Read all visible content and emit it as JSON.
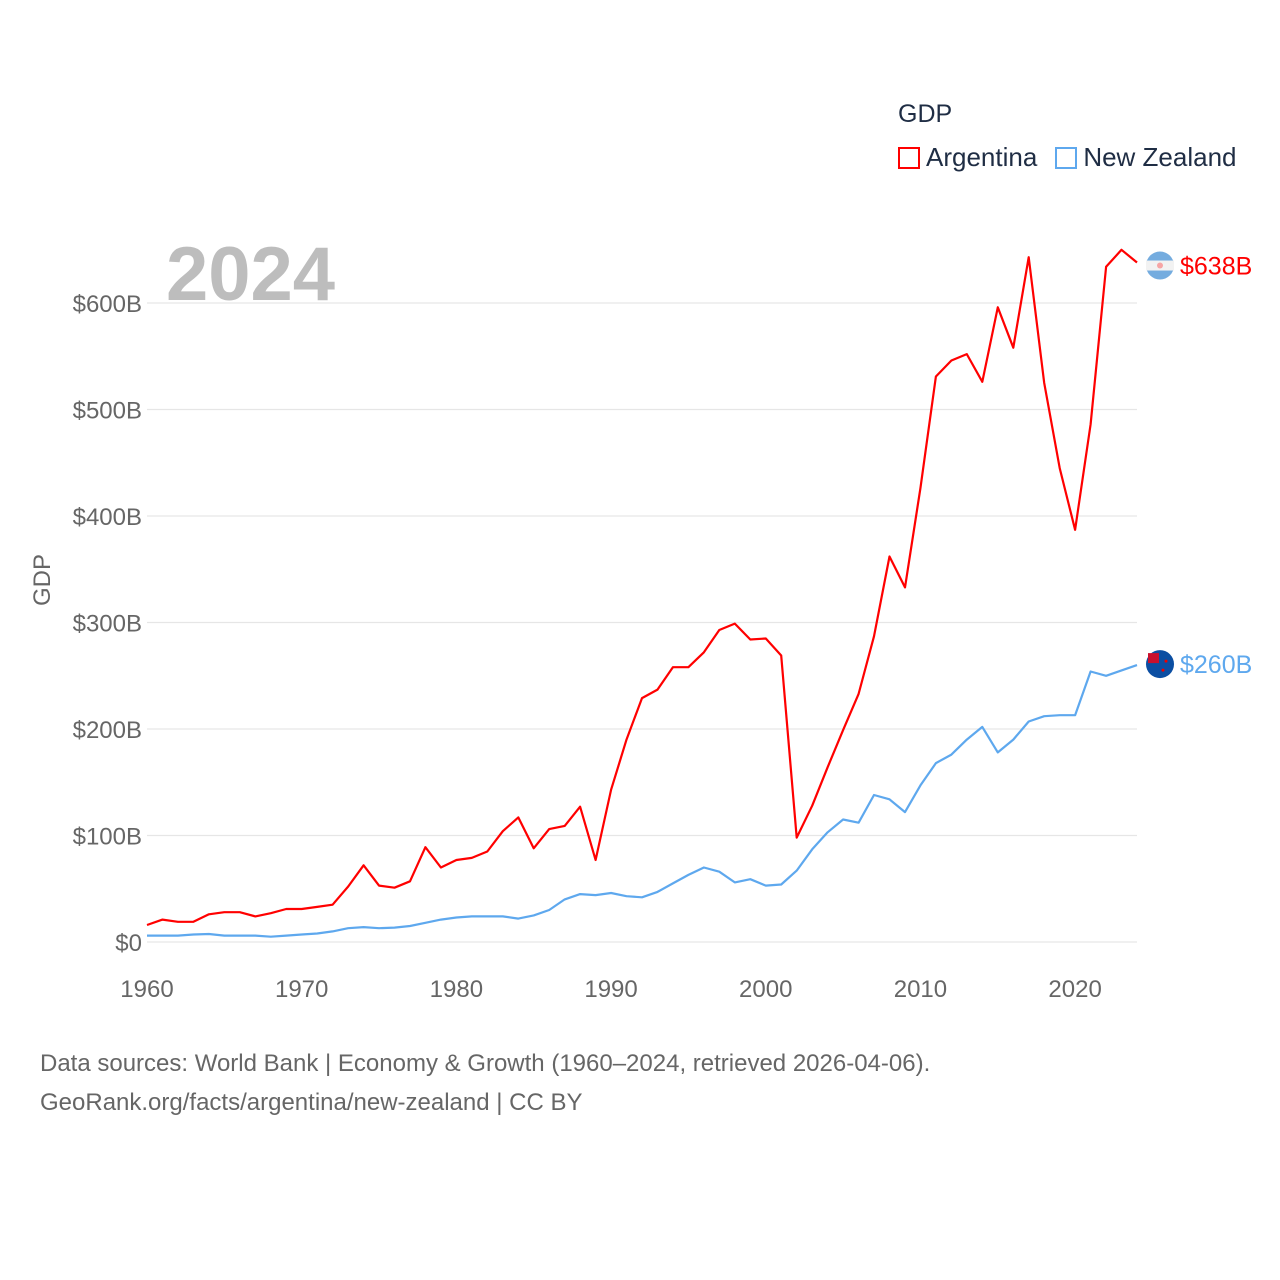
{
  "chart_data": {
    "type": "line",
    "title": "GDP",
    "ylabel": "GDP",
    "xlabel": "",
    "year_label": "2024",
    "x_range": [
      1960,
      2024
    ],
    "ylim": [
      0,
      650
    ],
    "y_ticks": [
      0,
      100,
      200,
      300,
      400,
      500,
      600
    ],
    "y_tick_labels": [
      "$0",
      "$100B",
      "$200B",
      "$300B",
      "$400B",
      "$500B",
      "$600B"
    ],
    "x_ticks": [
      1960,
      1970,
      1980,
      1990,
      2000,
      2010,
      2020
    ],
    "x_tick_labels": [
      "1960",
      "1970",
      "1980",
      "1990",
      "2000",
      "2010",
      "2020"
    ],
    "grid": true,
    "legend_placement": "top-right",
    "series": [
      {
        "name": "Argentina",
        "color": "#ff0000",
        "end_label": "$638B",
        "values": [
          16,
          21,
          19,
          19,
          26,
          28,
          28,
          24,
          27,
          31,
          31,
          33,
          35,
          52,
          72,
          53,
          51,
          57,
          89,
          70,
          77,
          79,
          85,
          104,
          117,
          88,
          106,
          109,
          127,
          77,
          143,
          190,
          229,
          237,
          258,
          258,
          272,
          293,
          299,
          284,
          285,
          269,
          98,
          128,
          164,
          199,
          233,
          287,
          362,
          333,
          426,
          531,
          546,
          552,
          526,
          596,
          558,
          643,
          525,
          445,
          387,
          486,
          634,
          650,
          638
        ]
      },
      {
        "name": "New Zealand",
        "color": "#5ea8ee",
        "end_label": "$260B",
        "values": [
          6,
          6,
          6,
          7,
          7.5,
          6,
          6,
          6,
          5,
          6,
          7,
          8,
          10,
          13,
          14,
          13,
          13.5,
          15,
          18,
          21,
          23,
          24,
          24,
          24,
          22,
          25,
          30,
          40,
          45,
          44,
          46,
          43,
          42,
          47,
          55,
          63,
          70,
          66,
          56,
          59,
          53,
          54,
          67,
          87,
          103,
          115,
          112,
          138,
          134,
          122,
          147,
          168,
          176,
          190,
          202,
          178,
          190,
          207,
          212,
          213,
          213,
          254,
          250,
          255,
          260
        ]
      }
    ]
  },
  "legend": {
    "title": "GDP"
  },
  "source": {
    "line1": "Data sources: World Bank | Economy & Growth (1960–2024, retrieved 2026-04-06).",
    "line2": "GeoRank.org/facts/argentina/new-zealand | CC BY"
  }
}
